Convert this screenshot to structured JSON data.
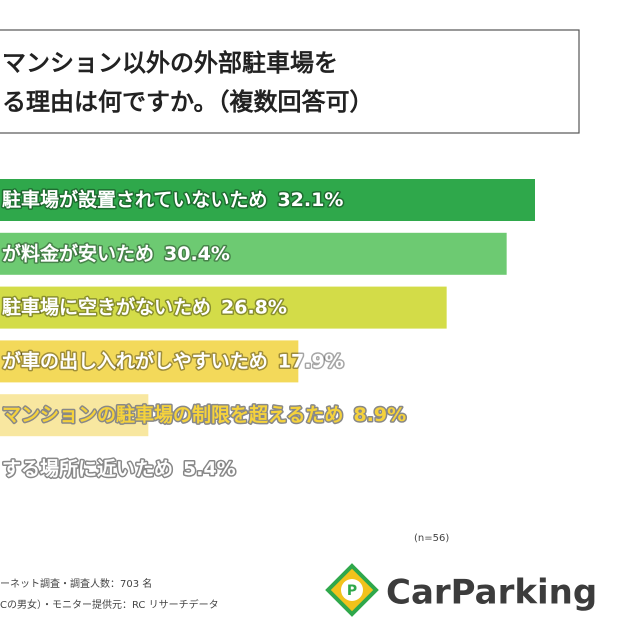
{
  "chart_data": {
    "type": "bar",
    "orientation": "horizontal",
    "title": [
      "マンション以外の外部駐車場を",
      "る理由は何ですか。（複数回答可）"
    ],
    "categories": [
      "駐車場が設置されていないため",
      "が料金が安いため",
      "駐車場に空きがないため",
      "が車の出し入れがしやすいため",
      "マンションの駐車場の制限を超えるため",
      "する場所に近いため"
    ],
    "values": [
      32.1,
      30.4,
      26.8,
      17.9,
      8.9,
      5.4
    ],
    "value_labels": [
      "32.1%",
      "30.4%",
      "26.8%",
      "17.9%",
      "8.9%",
      "5.4%"
    ],
    "colors": [
      "#2fa84b",
      "#6dca72",
      "#d3dc48",
      "#f3d95a",
      "#f8e7a0",
      "#ffffff"
    ],
    "label_colors": [
      "#ffffff",
      "#ffffff",
      "#ffffff",
      "#ffffff",
      "#f5d23c",
      "#ffffff"
    ],
    "xlim": [
      0,
      38.4
    ],
    "sample_note": "(n=56)",
    "footnotes": [
      "ーネット調査・調査人数：703 名",
      "Cの男女）・モニター提供元：RC リサーチデータ"
    ],
    "logo": "CarParking"
  }
}
